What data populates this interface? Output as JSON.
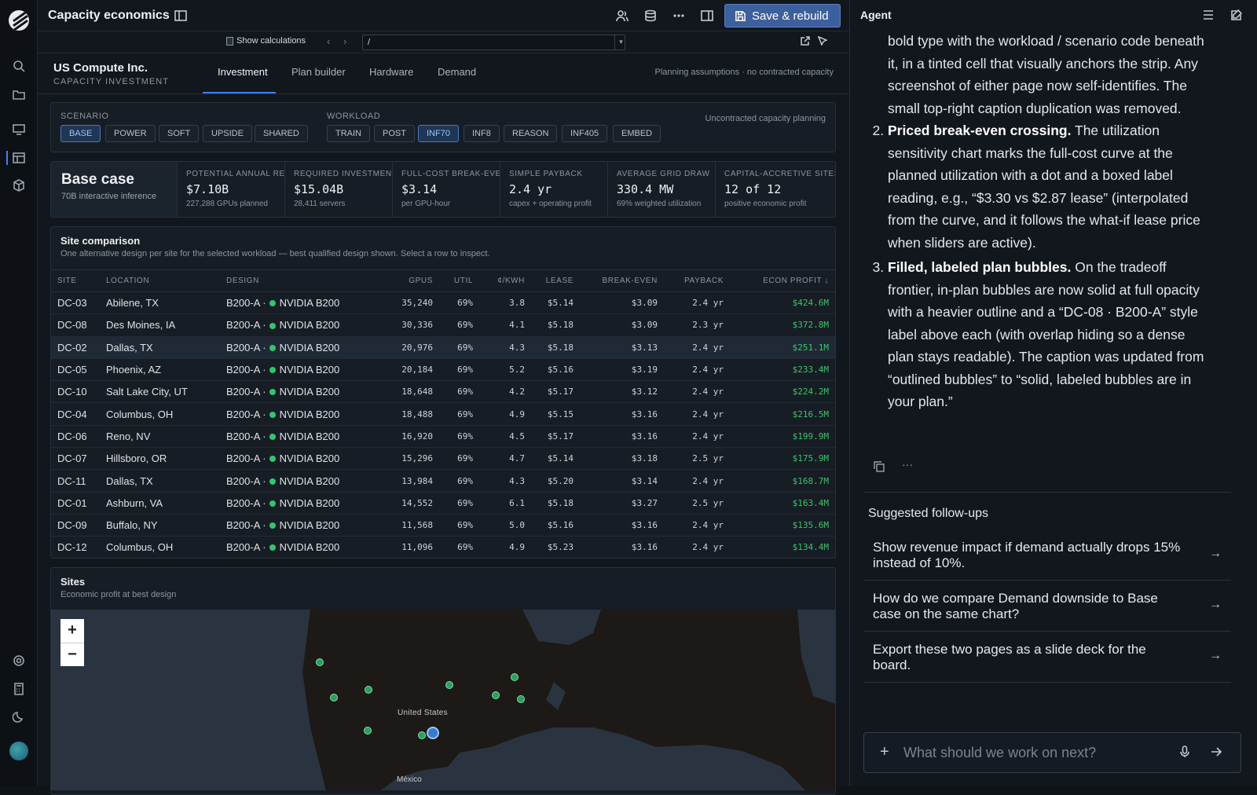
{
  "app": {
    "title": "Capacity economics",
    "save_label": "Save & rebuild"
  },
  "subbar": {
    "calc_label": "Show calculations",
    "path_value": "/"
  },
  "company": {
    "name": "US Compute Inc.",
    "subtitle": "CAPACITY INVESTMENT"
  },
  "tabs": [
    {
      "label": "Investment",
      "active": true
    },
    {
      "label": "Plan builder",
      "active": false
    },
    {
      "label": "Hardware",
      "active": false
    },
    {
      "label": "Demand",
      "active": false
    }
  ],
  "planning_note": "Planning assumptions · no contracted capacity",
  "filters": {
    "scenario_label": "SCENARIO",
    "scenarios": [
      "BASE",
      "POWER",
      "SOFT",
      "UPSIDE",
      "SHARED"
    ],
    "scenario_selected": "BASE",
    "workload_label": "WORKLOAD",
    "workloads": [
      "TRAIN",
      "POST",
      "INF70",
      "INF8",
      "REASON",
      "INF405",
      "EMBED"
    ],
    "workload_selected": "INF70",
    "note": "Uncontracted capacity planning"
  },
  "case": {
    "title": "Base case",
    "subtitle": "70B interactive inference"
  },
  "kpis": [
    {
      "label": "POTENTIAL ANNUAL REVENUE",
      "value": "$7.10B",
      "sub": "227,288 GPUs planned"
    },
    {
      "label": "REQUIRED INVESTMENT",
      "value": "$15.04B",
      "sub": "28,411 servers"
    },
    {
      "label": "FULL-COST BREAK-EVEN",
      "value": "$3.14",
      "sub": "per GPU-hour"
    },
    {
      "label": "SIMPLE PAYBACK",
      "value": "2.4 yr",
      "sub": "capex + operating profit"
    },
    {
      "label": "AVERAGE GRID DRAW",
      "value": "330.4 MW",
      "sub": "69% weighted utilization"
    },
    {
      "label": "CAPITAL-ACCRETIVE SITES",
      "value": "12 of 12",
      "sub": "positive economic profit"
    }
  ],
  "site_comparison": {
    "title": "Site comparison",
    "subtitle": "One alternative design per site for the selected workload — best qualified design shown. Select a row to inspect.",
    "columns": [
      "SITE",
      "LOCATION",
      "DESIGN",
      "GPUS",
      "UTIL",
      "¢/KWH",
      "LEASE",
      "BREAK-EVEN",
      "PAYBACK",
      "ECON PROFIT ↓"
    ],
    "rows": [
      {
        "site": "DC-03",
        "location": "Abilene, TX",
        "design": "B200-A ·",
        "hw": "NVIDIA B200",
        "gpus": "35,240",
        "util": "69%",
        "kwh": "3.8",
        "lease": "$5.14",
        "be": "$3.09",
        "payback": "2.4 yr",
        "profit": "$424.6M"
      },
      {
        "site": "DC-08",
        "location": "Des Moines, IA",
        "design": "B200-A ·",
        "hw": "NVIDIA B200",
        "gpus": "30,336",
        "util": "69%",
        "kwh": "4.1",
        "lease": "$5.18",
        "be": "$3.09",
        "payback": "2.3 yr",
        "profit": "$372.8M"
      },
      {
        "site": "DC-02",
        "location": "Dallas, TX",
        "design": "B200-A ·",
        "hw": "NVIDIA B200",
        "gpus": "20,976",
        "util": "69%",
        "kwh": "4.3",
        "lease": "$5.18",
        "be": "$3.13",
        "payback": "2.4 yr",
        "profit": "$251.1M",
        "selected": true
      },
      {
        "site": "DC-05",
        "location": "Phoenix, AZ",
        "design": "B200-A ·",
        "hw": "NVIDIA B200",
        "gpus": "20,184",
        "util": "69%",
        "kwh": "5.2",
        "lease": "$5.16",
        "be": "$3.19",
        "payback": "2.4 yr",
        "profit": "$233.4M"
      },
      {
        "site": "DC-10",
        "location": "Salt Lake City, UT",
        "design": "B200-A ·",
        "hw": "NVIDIA B200",
        "gpus": "18,648",
        "util": "69%",
        "kwh": "4.2",
        "lease": "$5.17",
        "be": "$3.12",
        "payback": "2.4 yr",
        "profit": "$224.2M"
      },
      {
        "site": "DC-04",
        "location": "Columbus, OH",
        "design": "B200-A ·",
        "hw": "NVIDIA B200",
        "gpus": "18,488",
        "util": "69%",
        "kwh": "4.9",
        "lease": "$5.15",
        "be": "$3.16",
        "payback": "2.4 yr",
        "profit": "$216.5M"
      },
      {
        "site": "DC-06",
        "location": "Reno, NV",
        "design": "B200-A ·",
        "hw": "NVIDIA B200",
        "gpus": "16,920",
        "util": "69%",
        "kwh": "4.5",
        "lease": "$5.17",
        "be": "$3.16",
        "payback": "2.4 yr",
        "profit": "$199.9M"
      },
      {
        "site": "DC-07",
        "location": "Hillsboro, OR",
        "design": "B200-A ·",
        "hw": "NVIDIA B200",
        "gpus": "15,296",
        "util": "69%",
        "kwh": "4.7",
        "lease": "$5.14",
        "be": "$3.18",
        "payback": "2.5 yr",
        "profit": "$175.9M"
      },
      {
        "site": "DC-11",
        "location": "Dallas, TX",
        "design": "B200-A ·",
        "hw": "NVIDIA B200",
        "gpus": "13,984",
        "util": "69%",
        "kwh": "4.3",
        "lease": "$5.20",
        "be": "$3.14",
        "payback": "2.4 yr",
        "profit": "$168.7M"
      },
      {
        "site": "DC-01",
        "location": "Ashburn, VA",
        "design": "B200-A ·",
        "hw": "NVIDIA B200",
        "gpus": "14,552",
        "util": "69%",
        "kwh": "6.1",
        "lease": "$5.18",
        "be": "$3.27",
        "payback": "2.5 yr",
        "profit": "$163.4M"
      },
      {
        "site": "DC-09",
        "location": "Buffalo, NY",
        "design": "B200-A ·",
        "hw": "NVIDIA B200",
        "gpus": "11,568",
        "util": "69%",
        "kwh": "5.0",
        "lease": "$5.16",
        "be": "$3.16",
        "payback": "2.4 yr",
        "profit": "$135.6M"
      },
      {
        "site": "DC-12",
        "location": "Columbus, OH",
        "design": "B200-A ·",
        "hw": "NVIDIA B200",
        "gpus": "11,096",
        "util": "69%",
        "kwh": "4.9",
        "lease": "$5.23",
        "be": "$3.16",
        "payback": "2.4 yr",
        "profit": "$134.4M"
      }
    ]
  },
  "sites_map": {
    "title": "Sites",
    "subtitle": "Economic profit at best design",
    "label_us": "United States",
    "label_mx": "México",
    "zoom_in": "+",
    "zoom_out": "−"
  },
  "agent": {
    "title": "Agent",
    "lead": "bold type with the workload / scenario code beneath it, in a tinted cell that visually anchors the strip. Any screenshot of either page now self-identifies. The small top-right caption duplication was removed.",
    "items": [
      {
        "head": "Priced break-even crossing.",
        "body": " The utilization sensitivity chart marks the full-cost curve at the planned utilization with a dot and a boxed label reading, e.g., “$3.30 vs $2.87 lease” (interpolated from the curve, and it follows the what-if lease price when sliders are active)."
      },
      {
        "head": "Filled, labeled plan bubbles.",
        "body": " On the tradeoff frontier, in-plan bubbles are now solid at full opacity with a heavier outline and a “DC-08 · B200-A” style label above each (with overlap hiding so a dense plan stays readable). The caption was updated from “outlined bubbles” to “solid, labeled bubbles are in your plan.”"
      }
    ],
    "more": "···",
    "suggestions_title": "Suggested follow-ups",
    "suggestions": [
      "Show revenue impact if demand actually drops 15% instead of 10%.",
      "How do we compare Demand downside to Base case on the same chart?",
      "Export these two pages as a slide deck for the board."
    ],
    "input_placeholder": "What should we work on next?"
  },
  "colors": {
    "accent": "#3b82f6",
    "profit": "#3cc46b",
    "save_button": "#3d5f9c"
  }
}
